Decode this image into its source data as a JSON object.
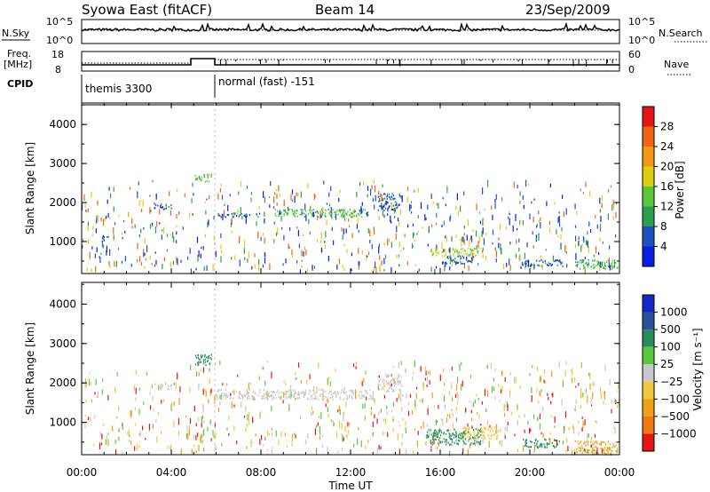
{
  "header": {
    "station": "Syowa East (fitACF)",
    "beam": "Beam 14",
    "date": "23/Sep/2009"
  },
  "top_panels": {
    "nsky": {
      "label": "N.Sky",
      "ticks": [
        "10^5",
        "10^0"
      ]
    },
    "nsearch": {
      "label": "N.Search",
      "ticks": [
        "10^5",
        "10^0"
      ]
    },
    "freq": {
      "label_line1": "Freq.",
      "label_line2": "[MHz]",
      "ticks": [
        "18",
        "8"
      ]
    },
    "nave": {
      "label": "Nave",
      "ticks": [
        "60",
        "0"
      ]
    },
    "cpid": {
      "label": "CPID",
      "modes": [
        "themis 3300",
        "normal (fast) -151"
      ]
    }
  },
  "colorbars": {
    "power": {
      "label": "Power [dB]",
      "ticks": [
        "4",
        "8",
        "12",
        "16",
        "20",
        "24",
        "28"
      ],
      "colors": [
        "#0a1ee6",
        "#1e50be",
        "#28a050",
        "#5ac83c",
        "#dccc14",
        "#f59614",
        "#f06414",
        "#e61414"
      ]
    },
    "velocity": {
      "label": "Velocity  [m s⁻¹]",
      "ticks": [
        "1000",
        "500",
        "100",
        "25",
        "−25",
        "−100",
        "−500",
        "−1000"
      ],
      "colors": [
        "#1428c8",
        "#28509b",
        "#288c5a",
        "#5ac83c",
        "#c8c8c8",
        "#f0c83c",
        "#f0a014",
        "#f07814",
        "#e61414"
      ]
    }
  },
  "chart_data": [
    {
      "type": "heatmap",
      "name": "power",
      "ylabel": "Slant Range [km]",
      "xlabel": "Time UT",
      "ylim": [
        180,
        4550
      ],
      "xlim": [
        0,
        24
      ],
      "yticks": [
        "1000",
        "2000",
        "3000",
        "4000"
      ],
      "xticks": [
        "00:00",
        "04:00",
        "08:00",
        "12:00",
        "16:00",
        "20:00",
        "00:00"
      ],
      "regions": [
        {
          "t": [
            0.9,
            1.2
          ],
          "r": [
            1000,
            1200
          ],
          "value": 6
        },
        {
          "t": [
            5.0,
            5.8
          ],
          "r": [
            2550,
            2750
          ],
          "value": 14
        },
        {
          "t": [
            3.2,
            4.0
          ],
          "r": [
            1850,
            2000
          ],
          "value": 6
        },
        {
          "t": [
            6.0,
            8.0
          ],
          "r": [
            1650,
            1750
          ],
          "value": 6
        },
        {
          "t": [
            8.6,
            12.8
          ],
          "r": [
            1650,
            1850
          ],
          "value": 12
        },
        {
          "t": [
            13.2,
            14.2
          ],
          "r": [
            1800,
            2250
          ],
          "value": 6
        },
        {
          "t": [
            15.5,
            17.8
          ],
          "r": [
            650,
            850
          ],
          "value": 16
        },
        {
          "t": [
            16.0,
            17.5
          ],
          "r": [
            450,
            650
          ],
          "value": 6
        },
        {
          "t": [
            19.6,
            21.5
          ],
          "r": [
            380,
            550
          ],
          "value": 6
        },
        {
          "t": [
            22.0,
            23.9
          ],
          "r": [
            300,
            550
          ],
          "value": 12
        }
      ]
    },
    {
      "type": "heatmap",
      "name": "velocity",
      "ylabel": "Slant Range [km]",
      "xlabel": "Time UT",
      "ylim": [
        180,
        4550
      ],
      "xlim": [
        0,
        24
      ],
      "yticks": [
        "1000",
        "2000",
        "3000",
        "4000"
      ],
      "xticks": [
        "00:00",
        "04:00",
        "08:00",
        "12:00",
        "16:00",
        "20:00",
        "00:00"
      ],
      "regions": [
        {
          "t": [
            5.0,
            5.8
          ],
          "r": [
            2450,
            2750
          ],
          "value": 60
        },
        {
          "t": [
            3.2,
            4.0
          ],
          "r": [
            1850,
            2000
          ],
          "value": 0
        },
        {
          "t": [
            6.0,
            13.0
          ],
          "r": [
            1600,
            1850
          ],
          "value": 0
        },
        {
          "t": [
            13.2,
            14.3
          ],
          "r": [
            1800,
            2250
          ],
          "value": 0
        },
        {
          "t": [
            15.4,
            17.8
          ],
          "r": [
            450,
            850
          ],
          "value": 60
        },
        {
          "t": [
            17.0,
            18.6
          ],
          "r": [
            600,
            900
          ],
          "value": -60
        },
        {
          "t": [
            19.6,
            21.3
          ],
          "r": [
            380,
            600
          ],
          "value": 60
        },
        {
          "t": [
            22.0,
            23.9
          ],
          "r": [
            200,
            550
          ],
          "value": -200
        }
      ]
    }
  ]
}
